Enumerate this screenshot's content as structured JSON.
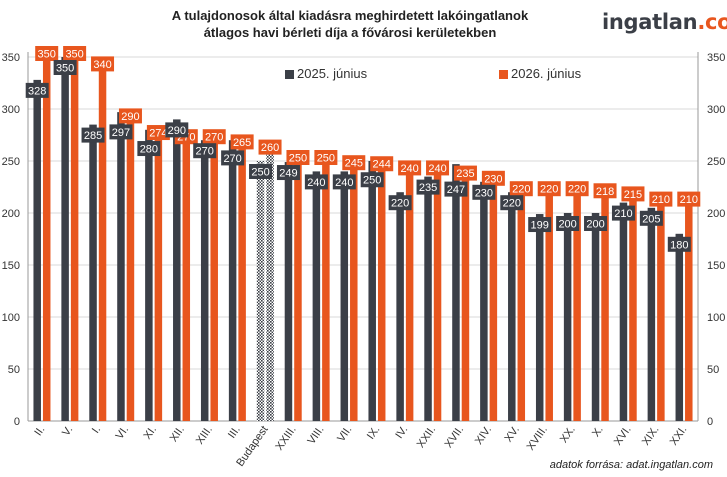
{
  "title_line1": "A tulajdonosok által kiadásra meghirdetett lakóingatlanok",
  "title_line2": "átlagos havi bérleti díja a fővárosi kerületekben",
  "brand": {
    "part1": "ingatlan",
    "part2": ".com"
  },
  "source": "adatok forrása: adat.ingatlan.com",
  "colors": {
    "dark": "#3b3f47",
    "orange": "#e8561e",
    "grid": "#d9d9d9"
  },
  "chart_data": {
    "type": "bar",
    "categories": [
      "II.",
      "V.",
      "I.",
      "VI.",
      "XI.",
      "XII.",
      "XIII.",
      "III.",
      "Budapest",
      "XXIII.",
      "VIII.",
      "VII.",
      "IX.",
      "IV.",
      "XXII.",
      "XVII.",
      "XIV.",
      "XV.",
      "XVIII.",
      "XX.",
      "X.",
      "XVI.",
      "XIX.",
      "XXI."
    ],
    "series": [
      {
        "name": "2025. június",
        "color": "#3b3f47",
        "values": [
          328,
          350,
          285,
          297,
          280,
          290,
          270,
          270,
          250,
          249,
          240,
          240,
          250,
          220,
          235,
          247,
          230,
          220,
          199,
          200,
          200,
          210,
          205,
          180
        ]
      },
      {
        "name": "2026. június",
        "color": "#e8561e",
        "values": [
          350,
          350,
          340,
          290,
          274,
          270,
          270,
          265,
          260,
          250,
          250,
          245,
          244,
          240,
          240,
          235,
          230,
          220,
          220,
          220,
          218,
          215,
          210,
          210
        ]
      }
    ],
    "ylim": [
      0,
      350
    ],
    "yticks": [
      0,
      50,
      100,
      150,
      200,
      250,
      300,
      350
    ],
    "highlight_category": "Budapest",
    "grid": true,
    "legend_placement": "top-center"
  }
}
